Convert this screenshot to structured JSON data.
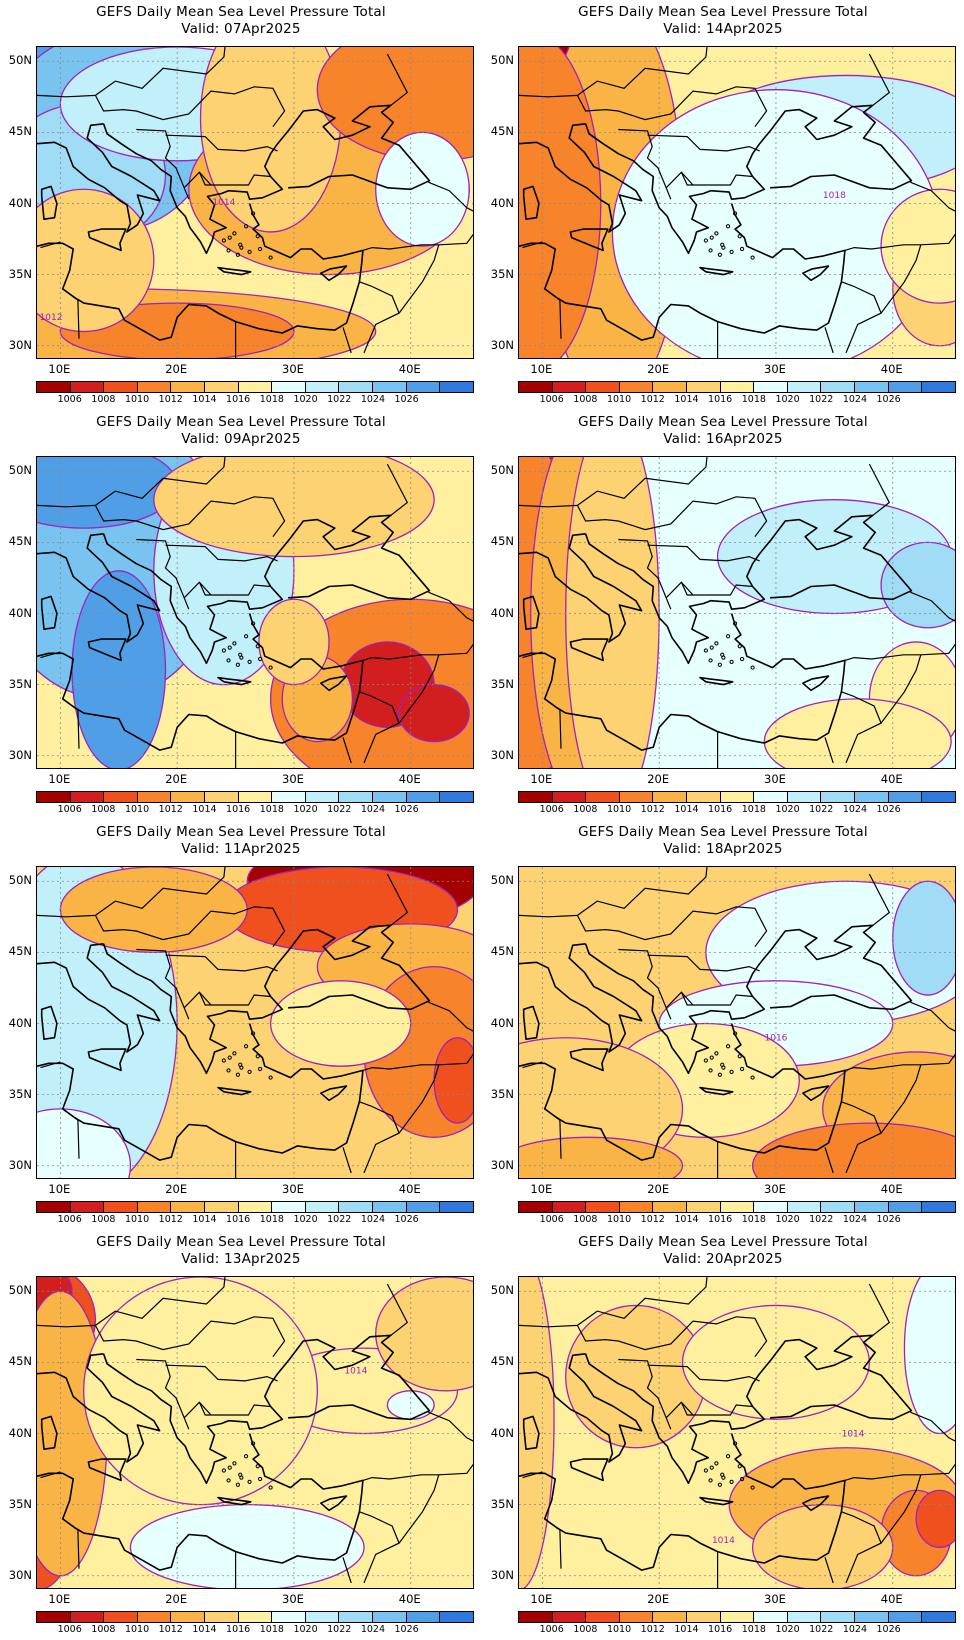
{
  "panels": [
    {
      "title": "GEFS Daily Mean Sea Level Pressure Total",
      "valid": "Valid:  07Apr2025",
      "contour_labels": [
        "1014",
        "1012"
      ]
    },
    {
      "title": "GEFS Daily Mean Sea Level Pressure Total",
      "valid": "Valid:  14Apr2025",
      "contour_labels": [
        "1018"
      ]
    },
    {
      "title": "GEFS Daily Mean Sea Level Pressure Total",
      "valid": "Valid:  09Apr2025",
      "contour_labels": []
    },
    {
      "title": "GEFS Daily Mean Sea Level Pressure Total",
      "valid": "Valid:  16Apr2025",
      "contour_labels": []
    },
    {
      "title": "GEFS Daily Mean Sea Level Pressure Total",
      "valid": "Valid:  11Apr2025",
      "contour_labels": []
    },
    {
      "title": "GEFS Daily Mean Sea Level Pressure Total",
      "valid": "Valid:  18Apr2025",
      "contour_labels": [
        "1016"
      ]
    },
    {
      "title": "GEFS Daily Mean Sea Level Pressure Total",
      "valid": "Valid:  13Apr2025",
      "contour_labels": [
        "1014"
      ]
    },
    {
      "title": "GEFS Daily Mean Sea Level Pressure Total",
      "valid": "Valid:  20Apr2025",
      "contour_labels": [
        "1014",
        "1014"
      ]
    }
  ],
  "axes": {
    "lat_labels": [
      "50N",
      "45N",
      "40N",
      "35N",
      "30N"
    ],
    "lon_labels": [
      "10E",
      "20E",
      "30E",
      "40E"
    ]
  },
  "colorbar": {
    "labels": [
      "1006",
      "1008",
      "1010",
      "1012",
      "1014",
      "1016",
      "1018",
      "1020",
      "1022",
      "1024",
      "1026"
    ],
    "colors": [
      "#a50000",
      "#d21e1e",
      "#f0501e",
      "#f7832a",
      "#fab446",
      "#fcd273",
      "#fff0a0",
      "#e6ffff",
      "#c2f0fa",
      "#a0dcf5",
      "#78c3f0",
      "#509fe6",
      "#2f78dc"
    ]
  },
  "contour_color": "#a020c0"
}
